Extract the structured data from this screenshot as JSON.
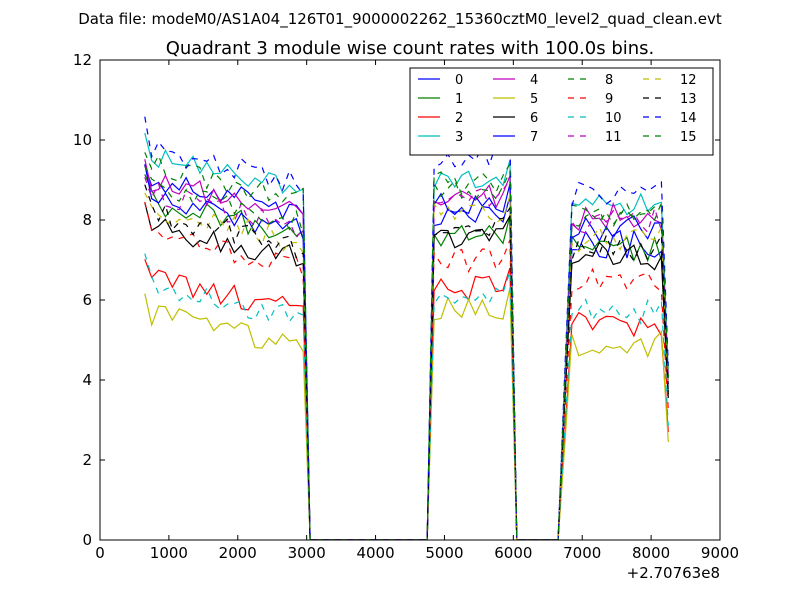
{
  "figure": {
    "suptitle": "Data file: modeM0/AS1A04_126T01_9000002262_15360cztM0_level2_quad_clean.evt"
  },
  "chart_data": {
    "type": "line",
    "title": "Quadrant 3 module wise count rates with 100.0s bins.",
    "xlabel": "",
    "ylabel": "",
    "x_offset_label": "+2.70763e8",
    "xlim": [
      0,
      9000
    ],
    "ylim": [
      0,
      12
    ],
    "x_ticks": [
      0,
      1000,
      2000,
      3000,
      4000,
      5000,
      6000,
      7000,
      8000,
      9000
    ],
    "y_ticks": [
      0,
      2,
      4,
      6,
      8,
      10,
      12
    ],
    "grid": false,
    "legend": {
      "placement": "top-right",
      "columns": 4
    },
    "segments": [
      {
        "x_start": 650,
        "x_end": 2950,
        "count": 24
      },
      {
        "x_start": 4850,
        "x_end": 5950,
        "count": 12
      },
      {
        "x_start": 6750,
        "x_end": 8250,
        "count": 16
      }
    ],
    "series": [
      {
        "name": "0",
        "color": "#0000ff",
        "dashed": false,
        "levels": [
          8.6,
          8.1,
          7.4
        ]
      },
      {
        "name": "1",
        "color": "#008000",
        "dashed": false,
        "levels": [
          8.0,
          7.6,
          7.3
        ]
      },
      {
        "name": "2",
        "color": "#ff0000",
        "dashed": false,
        "levels": [
          6.1,
          6.3,
          5.4
        ]
      },
      {
        "name": "3",
        "color": "#00bfbf",
        "dashed": false,
        "levels": [
          9.1,
          9.0,
          8.3
        ]
      },
      {
        "name": "4",
        "color": "#bf00bf",
        "dashed": false,
        "levels": [
          8.5,
          8.6,
          8.1
        ]
      },
      {
        "name": "5",
        "color": "#bfbf00",
        "dashed": false,
        "levels": [
          5.2,
          5.8,
          4.9
        ]
      },
      {
        "name": "6",
        "color": "#000000",
        "dashed": false,
        "levels": [
          7.4,
          7.6,
          7.1
        ]
      },
      {
        "name": "7",
        "color": "#0000ff",
        "dashed": false,
        "levels": [
          8.1,
          8.4,
          7.8
        ]
      },
      {
        "name": "8",
        "color": "#008000",
        "dashed": true,
        "levels": [
          8.9,
          8.7,
          8.2
        ]
      },
      {
        "name": "9",
        "color": "#ff0000",
        "dashed": true,
        "levels": [
          7.2,
          7.0,
          6.5
        ]
      },
      {
        "name": "10",
        "color": "#00bfbf",
        "dashed": true,
        "levels": [
          5.9,
          6.2,
          5.7
        ]
      },
      {
        "name": "11",
        "color": "#bf00bf",
        "dashed": true,
        "levels": [
          8.2,
          8.5,
          8.0
        ]
      },
      {
        "name": "12",
        "color": "#bfbf00",
        "dashed": true,
        "levels": [
          7.8,
          8.1,
          7.5
        ]
      },
      {
        "name": "13",
        "color": "#000000",
        "dashed": true,
        "levels": [
          7.7,
          7.8,
          7.3
        ]
      },
      {
        "name": "14",
        "color": "#0000ff",
        "dashed": true,
        "levels": [
          9.3,
          9.6,
          8.7
        ]
      },
      {
        "name": "15",
        "color": "#008000",
        "dashed": true,
        "levels": [
          8.3,
          8.9,
          8.1
        ]
      }
    ]
  }
}
